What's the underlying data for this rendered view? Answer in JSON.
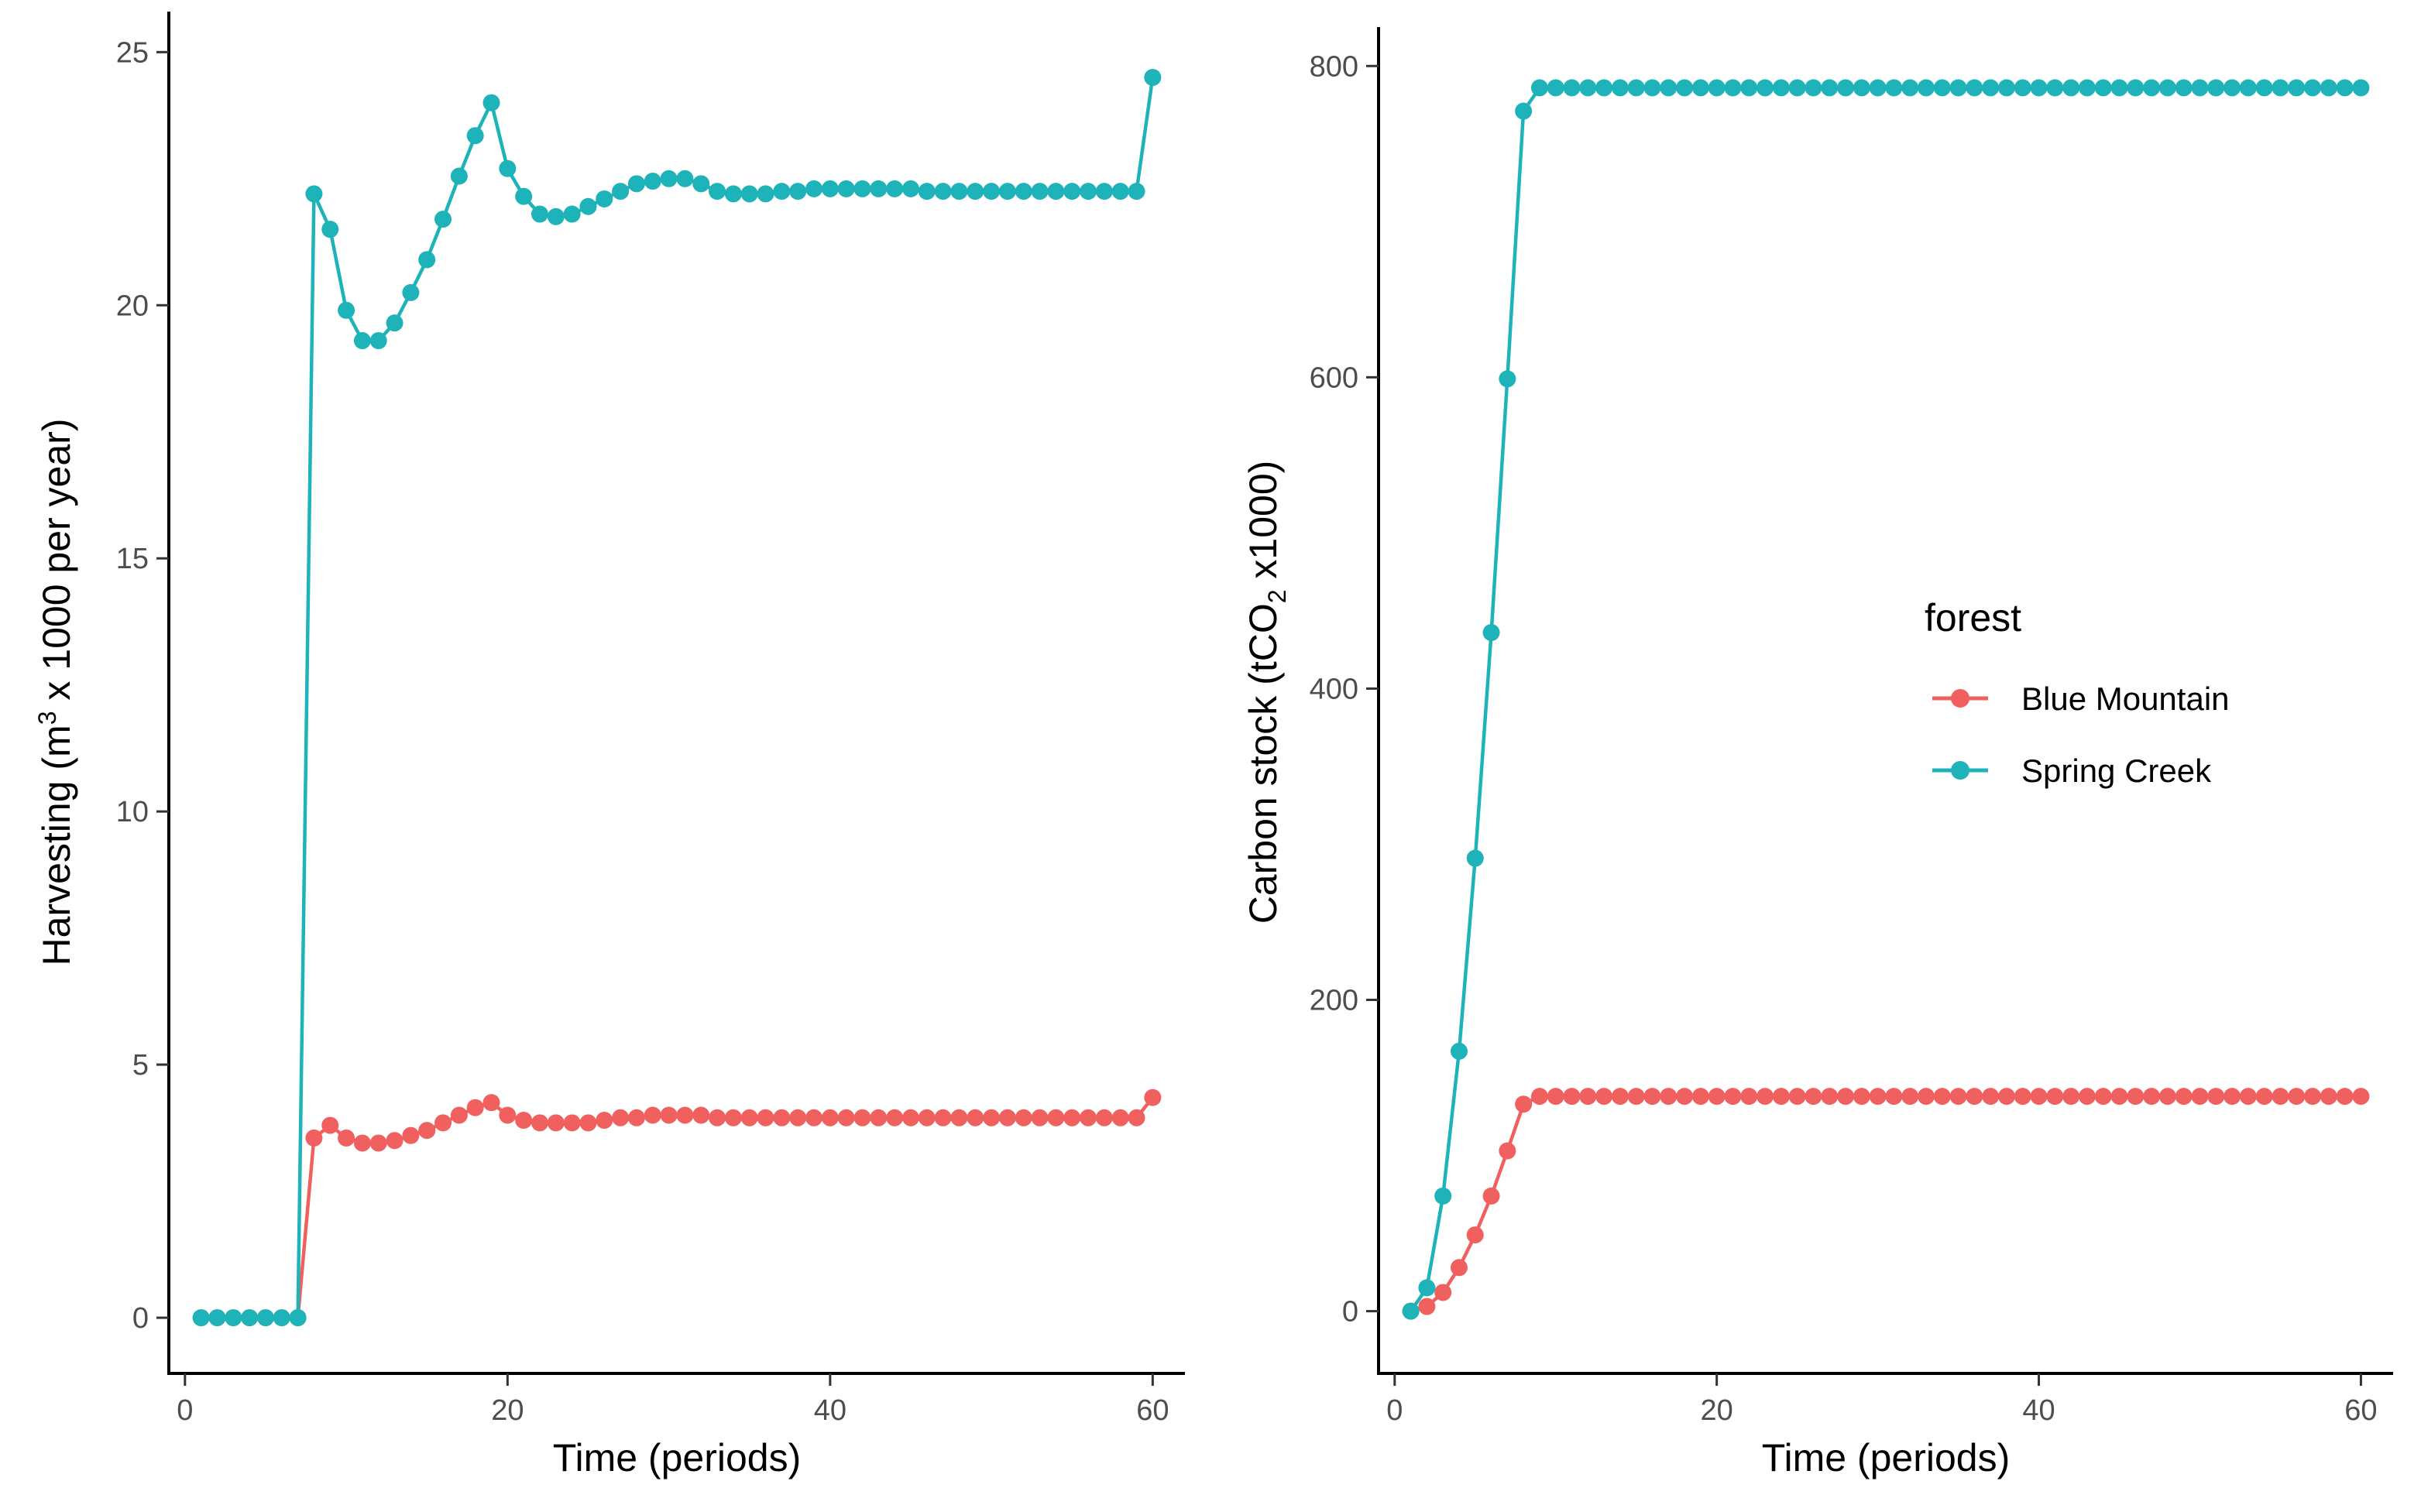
{
  "colors": {
    "blue_mountain": "#F0605F",
    "spring_creek": "#1EB3B9",
    "axis": "#000000",
    "tick_text": "#4d4d4d"
  },
  "legend": {
    "title": "forest",
    "entries": [
      "Blue Mountain",
      "Spring Creek"
    ],
    "placement": "right-center"
  },
  "chart_data": [
    {
      "type": "line",
      "title": "",
      "xlabel": "Time (periods)",
      "ylabel": "Harvesting (m³ x 1000 per year)",
      "ylabel_parts": {
        "before": "Harvesting (m",
        "sup": "3",
        "after": " x 1000 per year)"
      },
      "xlim": [
        -1,
        62
      ],
      "ylim": [
        -1.1,
        25.8
      ],
      "xticks": [
        0,
        20,
        40,
        60
      ],
      "yticks": [
        0,
        5,
        10,
        15,
        20,
        25
      ],
      "x": [
        1,
        2,
        3,
        4,
        5,
        6,
        7,
        8,
        9,
        10,
        11,
        12,
        13,
        14,
        15,
        16,
        17,
        18,
        19,
        20,
        21,
        22,
        23,
        24,
        25,
        26,
        27,
        28,
        29,
        30,
        31,
        32,
        33,
        34,
        35,
        36,
        37,
        38,
        39,
        40,
        41,
        42,
        43,
        44,
        45,
        46,
        47,
        48,
        49,
        50,
        51,
        52,
        53,
        54,
        55,
        56,
        57,
        58,
        59,
        60
      ],
      "series": [
        {
          "name": "Blue Mountain",
          "color_key": "blue_mountain",
          "values": [
            0,
            0,
            0,
            0,
            0,
            0,
            0,
            3.55,
            3.8,
            3.55,
            3.45,
            3.45,
            3.5,
            3.6,
            3.7,
            3.85,
            4.0,
            4.15,
            4.25,
            4.0,
            3.9,
            3.85,
            3.85,
            3.85,
            3.85,
            3.9,
            3.95,
            3.95,
            4.0,
            4.0,
            4.0,
            4.0,
            3.95,
            3.95,
            3.95,
            3.95,
            3.95,
            3.95,
            3.95,
            3.95,
            3.95,
            3.95,
            3.95,
            3.95,
            3.95,
            3.95,
            3.95,
            3.95,
            3.95,
            3.95,
            3.95,
            3.95,
            3.95,
            3.95,
            3.95,
            3.95,
            3.95,
            3.95,
            3.95,
            4.35
          ]
        },
        {
          "name": "Spring Creek",
          "color_key": "spring_creek",
          "values": [
            0,
            0,
            0,
            0,
            0,
            0,
            0,
            22.2,
            21.5,
            19.9,
            19.3,
            19.3,
            19.65,
            20.25,
            20.9,
            21.7,
            22.55,
            23.35,
            24.0,
            22.7,
            22.15,
            21.8,
            21.75,
            21.8,
            21.95,
            22.1,
            22.25,
            22.4,
            22.45,
            22.5,
            22.5,
            22.4,
            22.25,
            22.2,
            22.2,
            22.2,
            22.25,
            22.25,
            22.3,
            22.3,
            22.3,
            22.3,
            22.3,
            22.3,
            22.3,
            22.25,
            22.25,
            22.25,
            22.25,
            22.25,
            22.25,
            22.25,
            22.25,
            22.25,
            22.25,
            22.25,
            22.25,
            22.25,
            22.25,
            24.5
          ]
        }
      ]
    },
    {
      "type": "line",
      "title": "",
      "xlabel": "Time (periods)",
      "ylabel": "Carbon stock (tCO₂ x1000)",
      "ylabel_parts": {
        "before": "Carbon stock (tCO",
        "sub": "2",
        "after": " x1000)"
      },
      "xlim": [
        -1,
        62
      ],
      "ylim": [
        -40,
        825
      ],
      "xticks": [
        0,
        20,
        40,
        60
      ],
      "yticks": [
        0,
        200,
        400,
        600,
        800
      ],
      "x": [
        1,
        2,
        3,
        4,
        5,
        6,
        7,
        8,
        9,
        10,
        11,
        12,
        13,
        14,
        15,
        16,
        17,
        18,
        19,
        20,
        21,
        22,
        23,
        24,
        25,
        26,
        27,
        28,
        29,
        30,
        31,
        32,
        33,
        34,
        35,
        36,
        37,
        38,
        39,
        40,
        41,
        42,
        43,
        44,
        45,
        46,
        47,
        48,
        49,
        50,
        51,
        52,
        53,
        54,
        55,
        56,
        57,
        58,
        59,
        60
      ],
      "series": [
        {
          "name": "Blue Mountain",
          "color_key": "blue_mountain",
          "values": [
            0,
            3,
            12,
            28,
            49,
            74,
            103,
            133,
            138,
            138,
            138,
            138,
            138,
            138,
            138,
            138,
            138,
            138,
            138,
            138,
            138,
            138,
            138,
            138,
            138,
            138,
            138,
            138,
            138,
            138,
            138,
            138,
            138,
            138,
            138,
            138,
            138,
            138,
            138,
            138,
            138,
            138,
            138,
            138,
            138,
            138,
            138,
            138,
            138,
            138,
            138,
            138,
            138,
            138,
            138,
            138,
            138,
            138,
            138,
            138
          ]
        },
        {
          "name": "Spring Creek",
          "color_key": "spring_creek",
          "values": [
            0,
            15,
            74,
            167,
            291,
            436,
            599,
            771,
            786,
            786,
            786,
            786,
            786,
            786,
            786,
            786,
            786,
            786,
            786,
            786,
            786,
            786,
            786,
            786,
            786,
            786,
            786,
            786,
            786,
            786,
            786,
            786,
            786,
            786,
            786,
            786,
            786,
            786,
            786,
            786,
            786,
            786,
            786,
            786,
            786,
            786,
            786,
            786,
            786,
            786,
            786,
            786,
            786,
            786,
            786,
            786,
            786,
            786,
            786,
            786
          ]
        }
      ]
    }
  ]
}
